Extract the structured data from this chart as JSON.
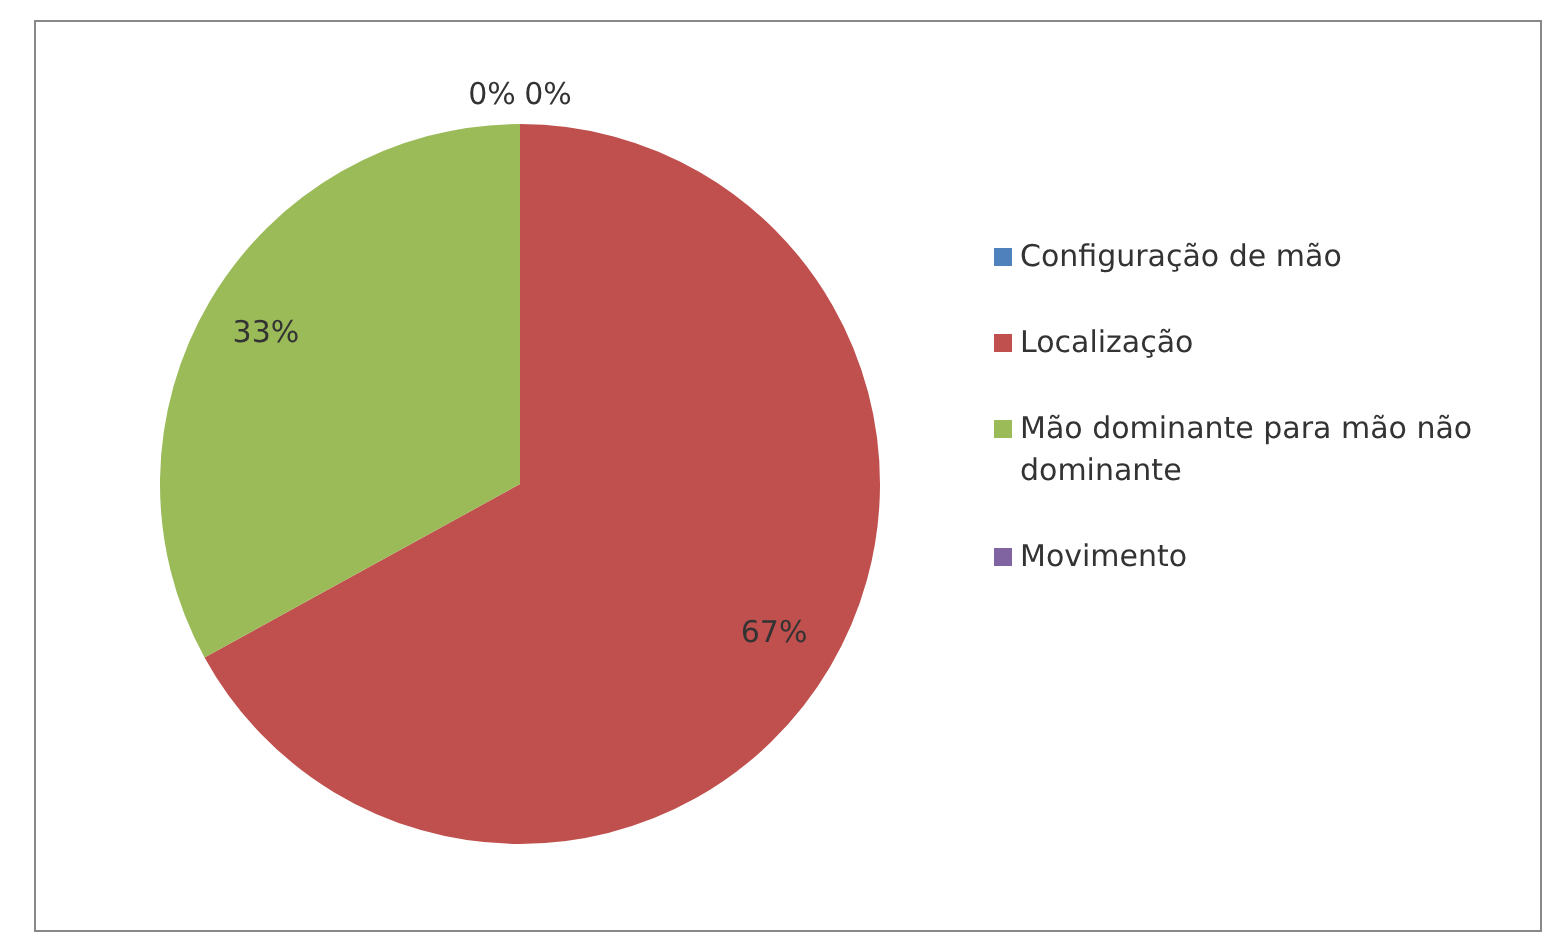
{
  "chart_data": {
    "type": "pie",
    "categories": [
      "Configuração de mão",
      "Localização",
      "Mão dominante para mão não dominante",
      "Movimento"
    ],
    "values": [
      0,
      67,
      33,
      0
    ],
    "colors": [
      "#4f81bd",
      "#c0504d",
      "#9bbb59",
      "#8064a2"
    ],
    "value_labels": [
      "0%",
      "67%",
      "33%",
      "0%"
    ],
    "legend": "right"
  }
}
